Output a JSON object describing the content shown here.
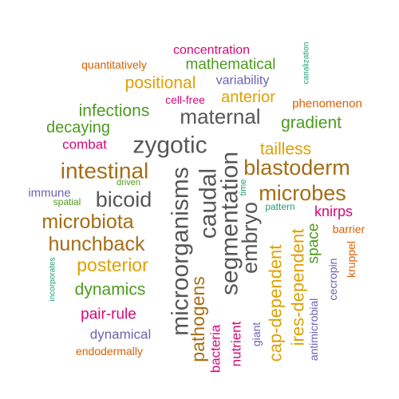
{
  "palette": {
    "orange": "#d95f02",
    "magenta": "#d4087a",
    "green": "#4e9a1e",
    "gold": "#e0a000",
    "purple": "#6a63b2",
    "gray": "#575757",
    "brown": "#a56d14",
    "teal": "#1b9e77"
  },
  "words": [
    {
      "text": "concentration",
      "color": "magenta"
    },
    {
      "text": "quantitatively",
      "color": "orange"
    },
    {
      "text": "mathematical",
      "color": "green"
    },
    {
      "text": "canalization",
      "color": "teal"
    },
    {
      "text": "positional",
      "color": "gold"
    },
    {
      "text": "variability",
      "color": "purple"
    },
    {
      "text": "anterior",
      "color": "gold"
    },
    {
      "text": "cell-free",
      "color": "magenta"
    },
    {
      "text": "phenomenon",
      "color": "orange"
    },
    {
      "text": "infections",
      "color": "green"
    },
    {
      "text": "maternal",
      "color": "gray"
    },
    {
      "text": "decaying",
      "color": "green"
    },
    {
      "text": "gradient",
      "color": "green"
    },
    {
      "text": "combat",
      "color": "magenta"
    },
    {
      "text": "zygotic",
      "color": "gray"
    },
    {
      "text": "tailless",
      "color": "gold"
    },
    {
      "text": "blastoderm",
      "color": "brown"
    },
    {
      "text": "intestinal",
      "color": "brown"
    },
    {
      "text": "driven",
      "color": "green"
    },
    {
      "text": "immune",
      "color": "purple"
    },
    {
      "text": "spatial",
      "color": "green"
    },
    {
      "text": "bicoid",
      "color": "gray"
    },
    {
      "text": "microorganisms",
      "color": "gray"
    },
    {
      "text": "caudal",
      "color": "gray"
    },
    {
      "text": "segmentation",
      "color": "gray"
    },
    {
      "text": "time",
      "color": "teal"
    },
    {
      "text": "microbes",
      "color": "brown"
    },
    {
      "text": "pattern",
      "color": "teal"
    },
    {
      "text": "knirps",
      "color": "magenta"
    },
    {
      "text": "microbiota",
      "color": "brown"
    },
    {
      "text": "embryo",
      "color": "gray"
    },
    {
      "text": "barrier",
      "color": "orange"
    },
    {
      "text": "hunchback",
      "color": "brown"
    },
    {
      "text": "space",
      "color": "green"
    },
    {
      "text": "kruppel",
      "color": "orange"
    },
    {
      "text": "posterior",
      "color": "gold"
    },
    {
      "text": "incorporates",
      "color": "teal"
    },
    {
      "text": "cap-dependent",
      "color": "gold"
    },
    {
      "text": "ires-dependent",
      "color": "gold"
    },
    {
      "text": "cecropin",
      "color": "purple"
    },
    {
      "text": "dynamics",
      "color": "green"
    },
    {
      "text": "pathogens",
      "color": "brown"
    },
    {
      "text": "pair-rule",
      "color": "magenta"
    },
    {
      "text": "antimicrobial",
      "color": "purple"
    },
    {
      "text": "dynamical",
      "color": "purple"
    },
    {
      "text": "bacteria",
      "color": "magenta"
    },
    {
      "text": "nutrient",
      "color": "magenta"
    },
    {
      "text": "giant",
      "color": "purple"
    },
    {
      "text": "endodermally",
      "color": "orange"
    }
  ]
}
